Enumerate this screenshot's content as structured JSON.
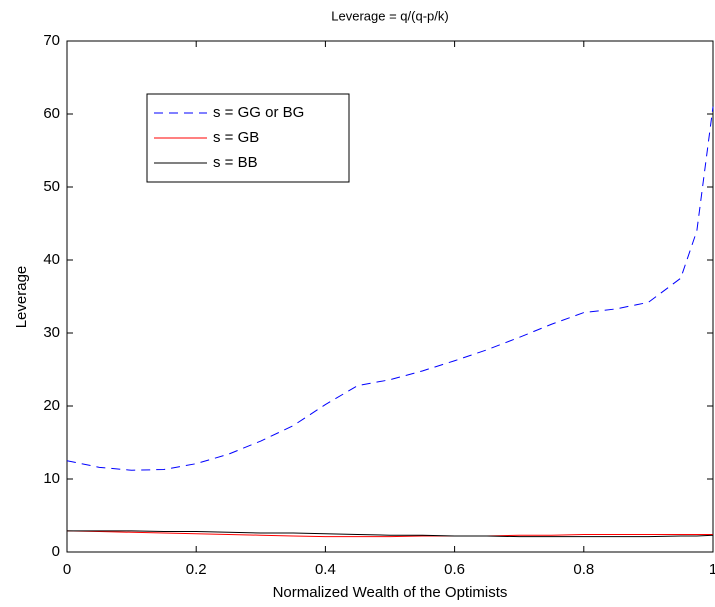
{
  "chart_data": {
    "type": "line",
    "title": "Leverage = q/(q-p/k)",
    "x_label": "Normalized Wealth of the Optimists",
    "y_label": "Leverage",
    "x": [
      0,
      0.05,
      0.1,
      0.15,
      0.2,
      0.25,
      0.3,
      0.35,
      0.4,
      0.45,
      0.5,
      0.55,
      0.6,
      0.65,
      0.7,
      0.75,
      0.8,
      0.85,
      0.9,
      0.95,
      0.975,
      1
    ],
    "series": [
      {
        "name": "s = GG or BG",
        "color": "#0000ff",
        "line_style": "--",
        "values": [
          12.5,
          11.6,
          11.2,
          11.3,
          12.1,
          13.4,
          15.2,
          17.3,
          20.2,
          22.8,
          23.6,
          24.8,
          26.2,
          27.7,
          29.4,
          31.2,
          32.8,
          33.3,
          34.2,
          37.5,
          44,
          61
        ]
      },
      {
        "name": "s = GB",
        "color": "#ff0000",
        "line_style": "-",
        "values": [
          2.9,
          2.8,
          2.7,
          2.6,
          2.5,
          2.4,
          2.3,
          2.2,
          2.1,
          2.1,
          2.1,
          2.2,
          2.2,
          2.2,
          2.3,
          2.3,
          2.4,
          2.4,
          2.4,
          2.4,
          2.4,
          2.4
        ]
      },
      {
        "name": "s = BB",
        "color": "#000000",
        "line_style": "-",
        "values": [
          2.9,
          2.9,
          2.9,
          2.8,
          2.8,
          2.7,
          2.6,
          2.6,
          2.5,
          2.4,
          2.3,
          2.3,
          2.2,
          2.2,
          2.1,
          2.1,
          2.1,
          2.1,
          2.1,
          2.2,
          2.2,
          2.3
        ]
      }
    ],
    "xlim": [
      0,
      1
    ],
    "xticks": [
      0,
      0.2,
      0.4,
      0.6,
      0.8,
      1
    ],
    "ylim": [
      0,
      70
    ],
    "yticks": [
      0,
      10,
      20,
      30,
      40,
      50,
      60,
      70
    ],
    "grid": false,
    "legend_location": "northwest"
  }
}
